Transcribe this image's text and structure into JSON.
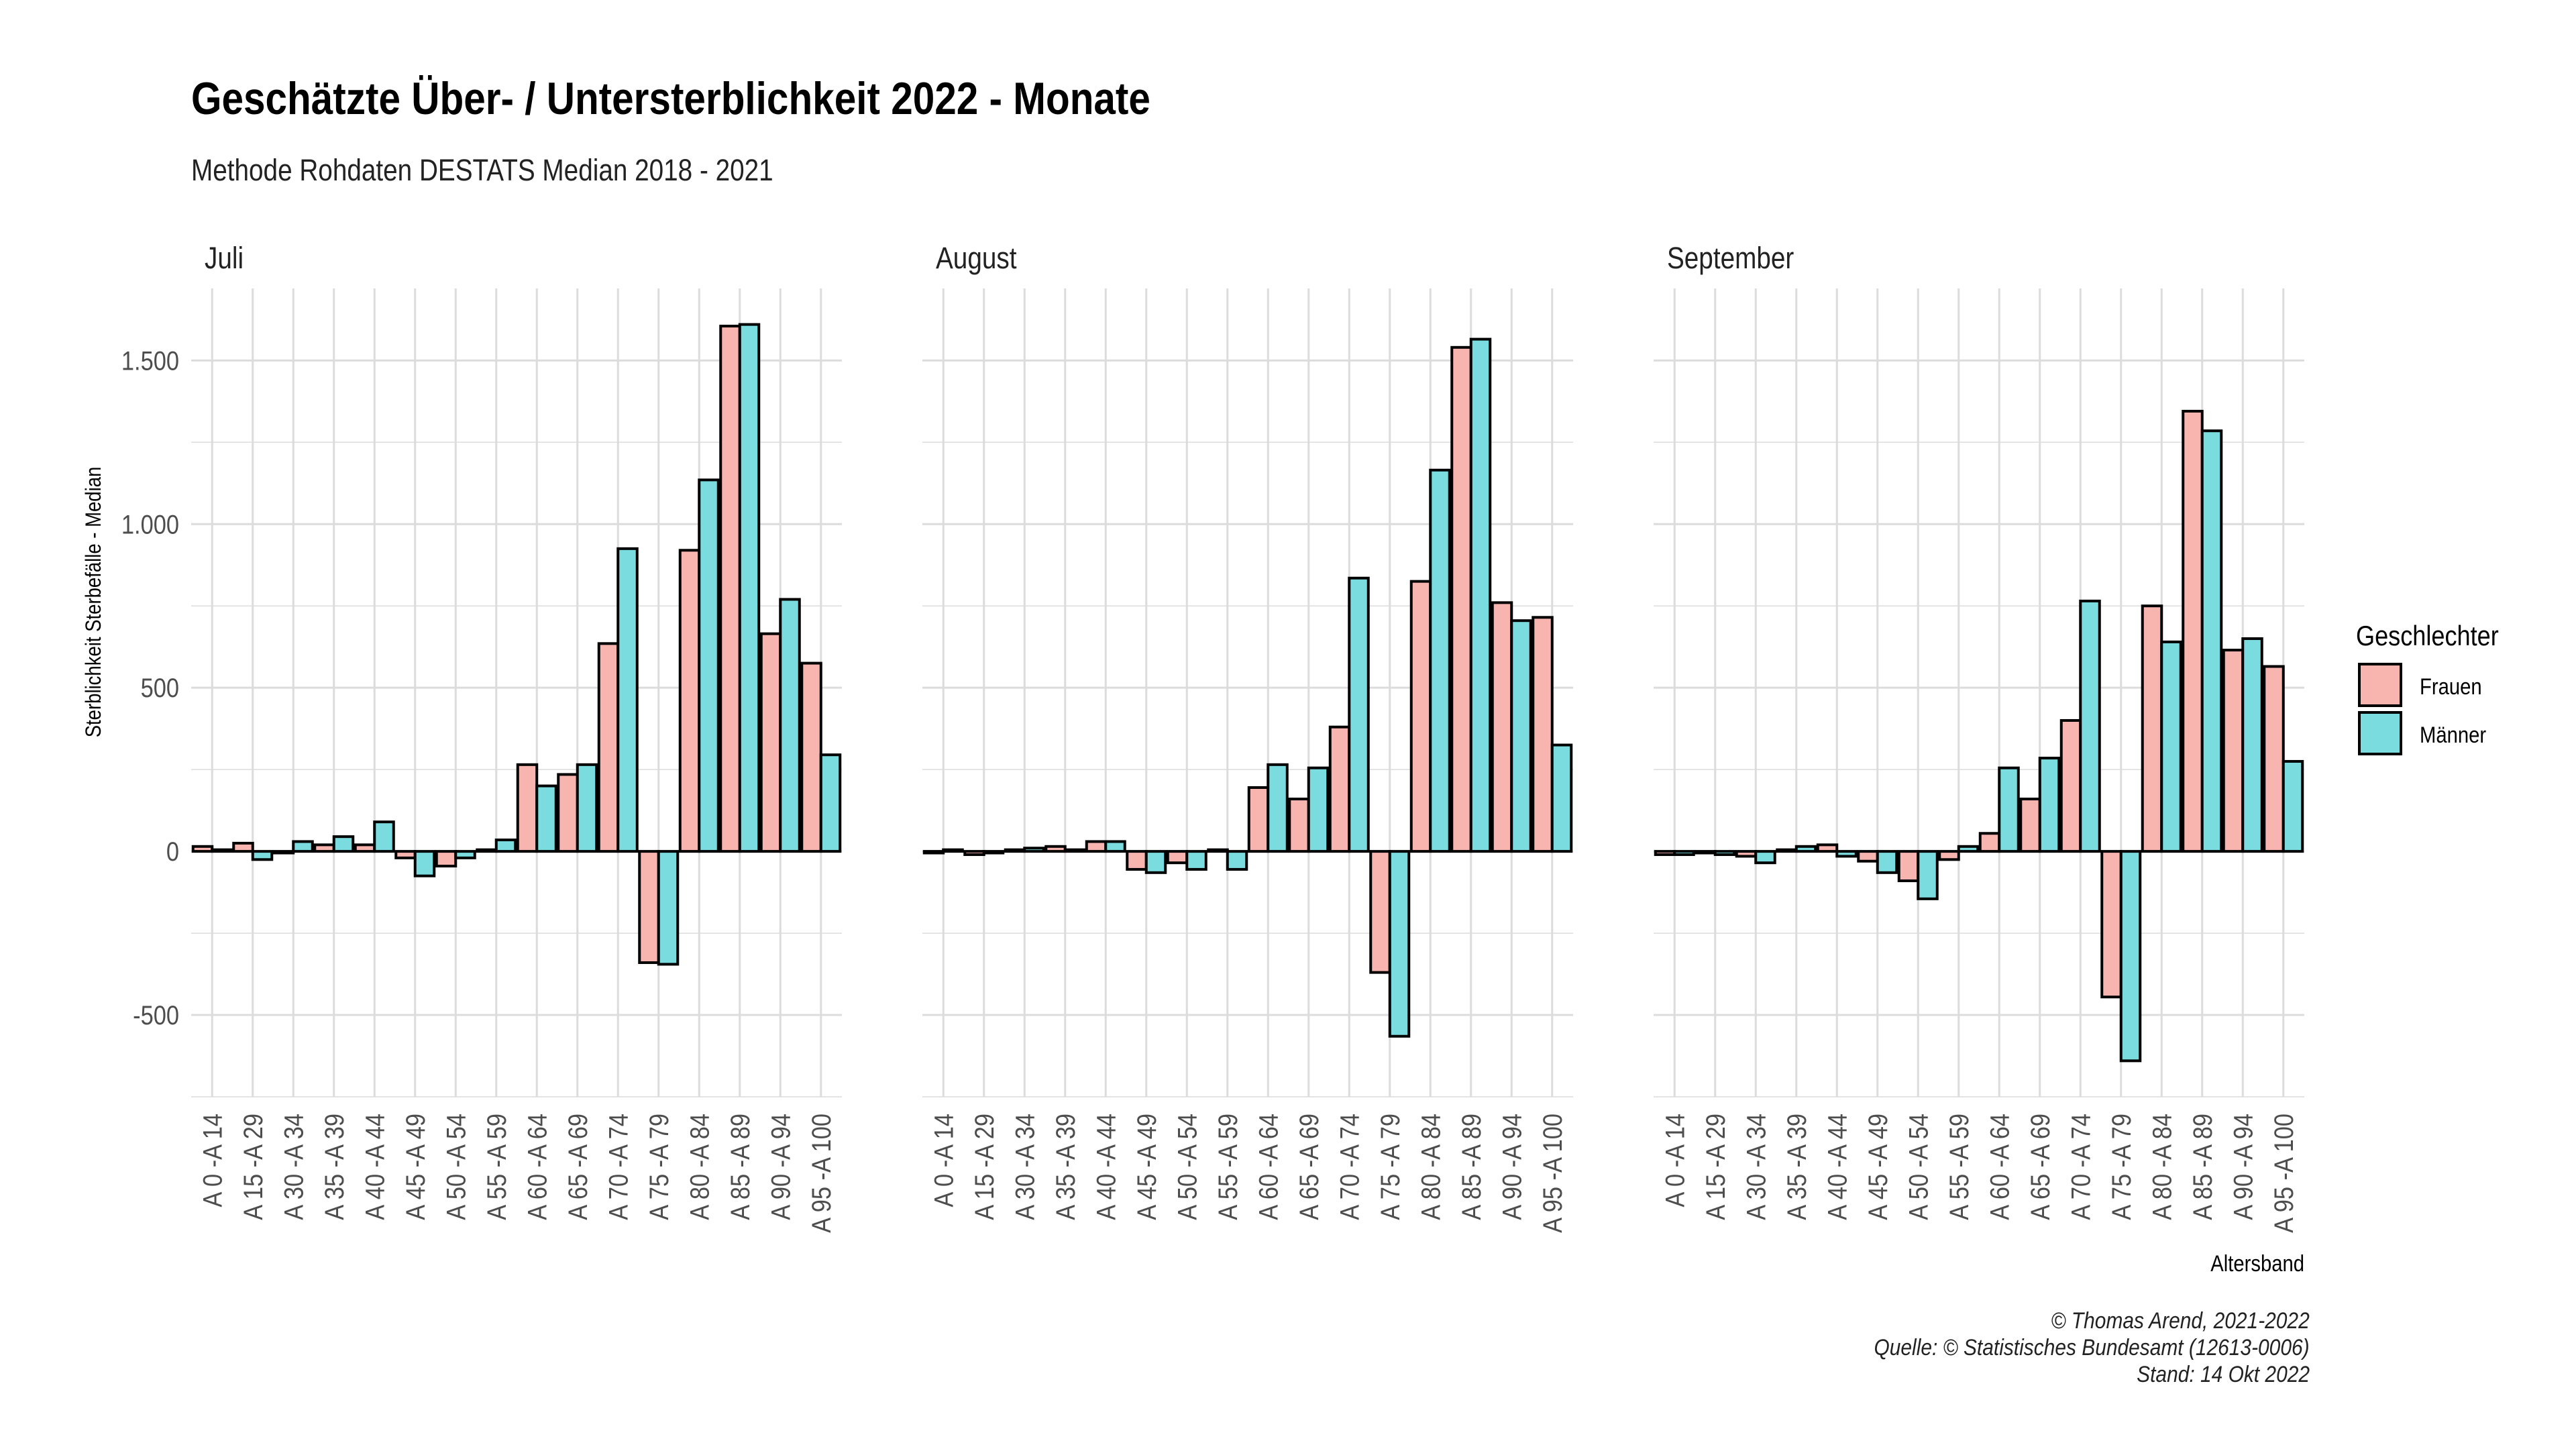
{
  "title": "Geschätzte Über- / Untersterblichkeit 2022 - Monate",
  "subtitle": "Methode Rohdaten DESTATS Median 2018 - 2021",
  "caption": [
    "© Thomas Arend, 2021-2022",
    "Quelle: © Statistisches Bundesamt (12613-0006)",
    "Stand: 14 Okt 2022"
  ],
  "colors": {
    "frauen": "#F8B4AE",
    "maenner": "#7ADCDF",
    "grid": "#DCDCDC",
    "border": "#000000"
  },
  "chart_data": {
    "type": "bar",
    "ylabel": "Sterblichkeit Sterbefälle - Median",
    "xlabel": "Altersband",
    "ylim": [
      -750,
      1720
    ],
    "yticks": [
      -500,
      0,
      500,
      1000,
      1500
    ],
    "ytick_labels": [
      "-500",
      "0",
      "500",
      "1.000",
      "1.500"
    ],
    "legend": {
      "title": "Geschlechter",
      "position": "right",
      "entries": [
        "Frauen",
        "Männer"
      ]
    },
    "categories": [
      "A 0 -A 14",
      "A 15 -A 29",
      "A 30 -A 34",
      "A 35 -A 39",
      "A 40 -A 44",
      "A 45 -A 49",
      "A 50 -A 54",
      "A 55 -A 59",
      "A 60 -A 64",
      "A 65 -A 69",
      "A 70 -A 74",
      "A 75 -A 79",
      "A 80 -A 84",
      "A 85 -A 89",
      "A 90 -A 94",
      "A 95 -A 100"
    ],
    "panels": [
      {
        "label": "Juli",
        "series": [
          {
            "name": "Frauen",
            "values": [
              15,
              25,
              -5,
              20,
              20,
              -20,
              -45,
              5,
              265,
              235,
              635,
              -340,
              920,
              1605,
              665,
              575
            ]
          },
          {
            "name": "Männer",
            "values": [
              5,
              -25,
              30,
              45,
              90,
              -75,
              -20,
              35,
              200,
              265,
              925,
              -345,
              1135,
              1610,
              770,
              295
            ]
          }
        ]
      },
      {
        "label": "August",
        "series": [
          {
            "name": "Frauen",
            "values": [
              -5,
              -10,
              5,
              15,
              30,
              -55,
              -35,
              5,
              195,
              160,
              380,
              -370,
              825,
              1540,
              760,
              715
            ]
          },
          {
            "name": "Männer",
            "values": [
              5,
              -5,
              10,
              5,
              30,
              -65,
              -55,
              -55,
              265,
              255,
              835,
              -565,
              1165,
              1565,
              705,
              325
            ]
          }
        ]
      },
      {
        "label": "September",
        "series": [
          {
            "name": "Frauen",
            "values": [
              -10,
              -5,
              -15,
              5,
              20,
              -30,
              -90,
              -25,
              55,
              160,
              400,
              -445,
              750,
              1345,
              615,
              565
            ]
          },
          {
            "name": "Männer",
            "values": [
              -10,
              -10,
              -35,
              15,
              -15,
              -65,
              -145,
              15,
              255,
              285,
              765,
              -640,
              640,
              1285,
              650,
              275
            ]
          }
        ]
      }
    ]
  }
}
